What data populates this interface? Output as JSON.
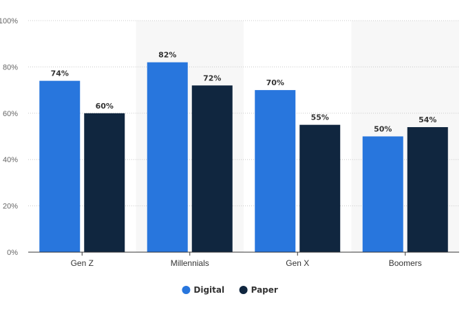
{
  "chart_data": {
    "type": "bar",
    "categories": [
      "Gen Z",
      "Millennials",
      "Gen X",
      "Boomers"
    ],
    "series": [
      {
        "name": "Digital",
        "values": [
          74,
          82,
          70,
          50
        ],
        "color": "#2876dd"
      },
      {
        "name": "Paper",
        "values": [
          60,
          72,
          55,
          54
        ],
        "color": "#10263f"
      }
    ],
    "ylim": [
      0,
      100
    ],
    "yticks": [
      0,
      20,
      40,
      60,
      80,
      100
    ],
    "ytick_labels": [
      "0%",
      "20%",
      "40%",
      "60%",
      "80%",
      "100%"
    ],
    "value_suffix": "%",
    "grid": true,
    "legend_position": "bottom-center",
    "title": "",
    "xlabel": "",
    "ylabel": ""
  }
}
